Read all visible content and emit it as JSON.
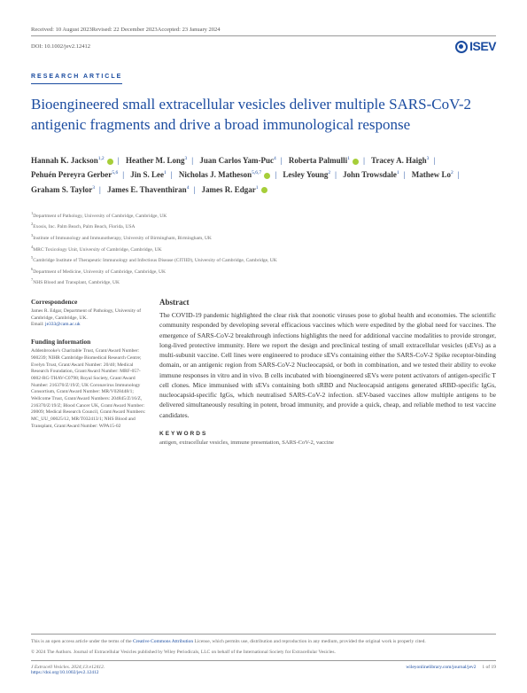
{
  "header": {
    "received": "Received: 10 August 2023",
    "revised": "Revised: 22 December 2023",
    "accepted": "Accepted: 23 January 2024"
  },
  "doi": "DOI: 10.1002/jev2.12412",
  "logo": "ISEV",
  "article_type": "RESEARCH ARTICLE",
  "title": "Bioengineered small extracellular vesicles deliver multiple SARS-CoV-2 antigenic fragments and drive a broad immunological response",
  "authors": [
    {
      "name": "Hannah K. Jackson",
      "sup": "1,2",
      "orcid": true
    },
    {
      "name": "Heather M. Long",
      "sup": "3",
      "orcid": false
    },
    {
      "name": "Juan Carlos Yam-Puc",
      "sup": "4",
      "orcid": false
    },
    {
      "name": "Roberta Palmulli",
      "sup": "1",
      "orcid": true
    },
    {
      "name": "Tracey A. Haigh",
      "sup": "3",
      "orcid": false
    },
    {
      "name": "Pehuén Pereyra Gerber",
      "sup": "5,6",
      "orcid": false
    },
    {
      "name": "Jin S. Lee",
      "sup": "1",
      "orcid": false
    },
    {
      "name": "Nicholas J. Matheson",
      "sup": "5,6,7",
      "orcid": true
    },
    {
      "name": "Lesley Young",
      "sup": "2",
      "orcid": false
    },
    {
      "name": "John Trowsdale",
      "sup": "1",
      "orcid": false
    },
    {
      "name": "Mathew Lo",
      "sup": "2",
      "orcid": false
    },
    {
      "name": "Graham S. Taylor",
      "sup": "3",
      "orcid": false
    },
    {
      "name": "James E. Thaventhiran",
      "sup": "4",
      "orcid": false
    },
    {
      "name": "James R. Edgar",
      "sup": "1",
      "orcid": true
    }
  ],
  "affiliations": [
    "Department of Pathology, University of Cambridge, Cambridge, UK",
    "Exosis, Inc. Palm Beach, Palm Beach, Florida, USA",
    "Institute of Immunology and Immunotherapy, University of Birmingham, Birmingham, UK",
    "MRC Toxicology Unit, University of Cambridge, Cambridge, UK",
    "Cambridge Institute of Therapeutic Immunology and Infectious Disease (CITIID), University of Cambridge, Cambridge, UK",
    "Department of Medicine, University of Cambridge, Cambridge, UK",
    "NHS Blood and Transplant, Cambridge, UK"
  ],
  "correspondence": {
    "title": "Correspondence",
    "text": "James R. Edgar, Department of Pathology, University of Cambridge, Cambridge, UK.",
    "email_label": "Email: ",
    "email": "je333@cam.ac.uk"
  },
  "funding": {
    "title": "Funding information",
    "text": "Addenbrooke's Charitable Trust, Grant/Award Number: 900239; NIHR Cambridge Biomedical Research Centre; Evelyn Trust, Grant/Award Number: 20/40; Medical Research Foundation, Grant/Award Number: MRF-057-0002-RG-THAV-C0798; Royal Society, Grant/Award Number: 216370/Z/19/Z; UK Coronavirus Immunology Consortium, Grant/Award Number: MR/V028448/1; Wellcome Trust, Grant/Award Numbers: 204845/Z/16/Z, 216370/Z/19/Z; Blood Cancer UK, Grant/Award Number: 20009; Medical Research Council, Grant/Award Numbers: MC_UU_00025/12, MR/T032413/1; NHS Blood and Transplant, Grant/Award Number: WPA15-02"
  },
  "abstract": {
    "title": "Abstract",
    "text": "The COVID-19 pandemic highlighted the clear risk that zoonotic viruses pose to global health and economies. The scientific community responded by developing several efficacious vaccines which were expedited by the global need for vaccines. The emergence of SARS-CoV-2 breakthrough infections highlights the need for additional vaccine modalities to provide stronger, long-lived protective immunity. Here we report the design and preclinical testing of small extracellular vesicles (sEVs) as a multi-subunit vaccine. Cell lines were engineered to produce sEVs containing either the SARS-CoV-2 Spike receptor-binding domain, or an antigenic region from SARS-CoV-2 Nucleocapsid, or both in combination, and we tested their ability to evoke immune responses in vitro and in vivo. B cells incubated with bioengineered sEVs were potent activators of antigen-specific T cell clones. Mice immunised with sEVs containing both sRBD and Nucleocapsid antigens generated sRBD-specific IgGs, nucleocapsid-specific IgGs, which neutralised SARS-CoV-2 infection. sEV-based vaccines allow multiple antigens to be delivered simultaneously resulting in potent, broad immunity, and provide a quick, cheap, and reliable method to test vaccine candidates."
  },
  "keywords": {
    "title": "KEYWORDS",
    "text": "antigen, extracellular vesicles, immune presentation, SARS-CoV-2, vaccine"
  },
  "footer": {
    "license_pre": "This is an open access article under the terms of the ",
    "license_link": "Creative Commons Attribution",
    "license_post": " License, which permits use, distribution and reproduction in any medium, provided the original work is properly cited.",
    "copyright": "© 2024 The Authors. Journal of Extracellular Vesicles published by Wiley Periodicals, LLC on behalf of the International Society for Extracellular Vesicles.",
    "citation": "J Extracell Vesicles. 2024;13:e12412.",
    "doi_link": "https://doi.org/10.1002/jev2.12412",
    "journal_link": "wileyonlinelibrary.com/journal/jev2",
    "page": "1 of 19"
  }
}
